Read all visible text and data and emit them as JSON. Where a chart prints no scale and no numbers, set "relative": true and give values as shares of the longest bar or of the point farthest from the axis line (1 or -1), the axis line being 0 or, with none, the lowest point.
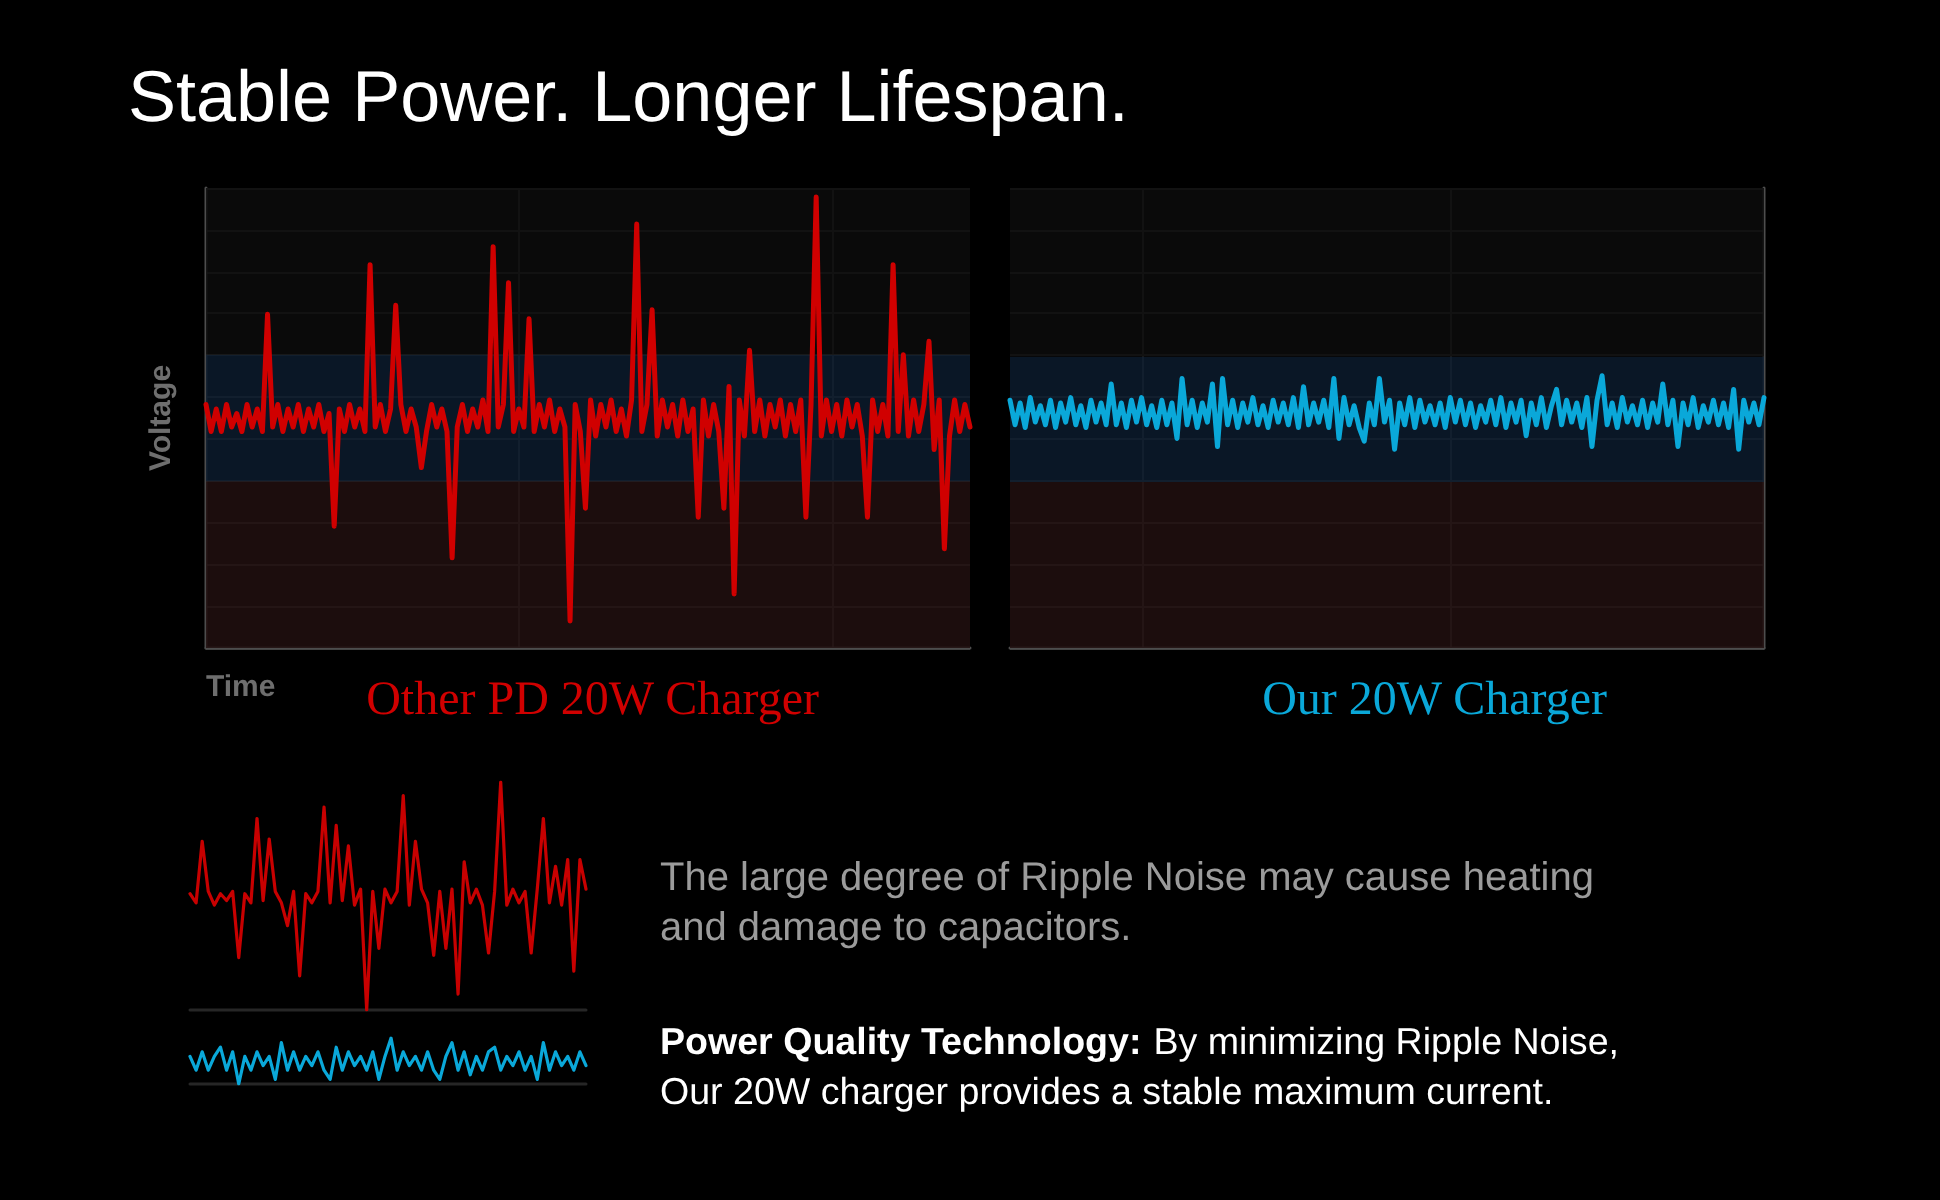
{
  "chart_data": [
    {
      "type": "line",
      "title": "Stable Power. Longer Lifespan.",
      "xlabel": "Time",
      "ylabel": "Voltage",
      "annotations": [
        "The large degree of Ripple Noise may cause heating and damage to capacitors.",
        "Power Quality Technology:",
        "By minimizing Ripple Noise,",
        "Our 20W charger provides a stable maximum current."
      ],
      "categories": [
        null,
        null,
        null,
        null,
        null,
        null,
        null,
        null,
        null,
        null,
        null,
        null,
        null,
        null,
        null,
        null,
        null,
        null,
        null,
        null,
        null,
        null,
        null,
        null,
        null,
        null,
        null,
        null,
        null,
        null,
        null,
        null,
        null,
        null,
        null,
        null,
        null,
        null,
        null,
        null,
        null,
        null,
        null,
        null,
        null,
        null,
        null,
        null,
        null,
        null,
        null,
        null,
        null,
        null,
        null,
        null,
        null,
        null,
        null,
        null,
        null,
        null,
        null,
        null,
        null,
        null,
        null,
        null,
        null,
        null,
        null,
        null,
        null,
        null,
        null,
        null,
        null,
        null,
        null,
        null,
        null,
        null,
        null,
        null,
        null,
        null,
        null,
        null,
        null,
        null,
        null,
        null,
        null,
        null,
        null,
        null,
        null,
        null,
        null,
        null,
        null,
        null,
        null,
        null,
        null,
        null,
        null,
        null,
        null,
        null,
        null,
        null,
        null,
        null,
        null,
        null,
        null,
        null,
        null,
        null,
        null,
        null,
        null,
        null,
        null,
        null,
        null,
        null,
        null,
        null,
        null,
        null,
        null,
        null,
        null,
        null,
        null,
        null,
        null,
        null,
        null,
        null,
        null,
        null,
        null,
        null,
        null,
        null,
        null,
        null
      ],
      "series": [
        {
          "name": "Other PD 20W Charger",
          "color": "#d00000",
          "values": [
            0.54,
            0.48,
            0.53,
            0.48,
            0.54,
            0.49,
            0.52,
            0.48,
            0.54,
            0.49,
            0.53,
            0.48,
            0.74,
            0.49,
            0.54,
            0.48,
            0.53,
            0.49,
            0.54,
            0.48,
            0.53,
            0.49,
            0.54,
            0.48,
            0.52,
            0.27,
            0.53,
            0.48,
            0.54,
            0.49,
            0.53,
            0.48,
            0.85,
            0.49,
            0.54,
            0.48,
            0.53,
            0.76,
            0.54,
            0.48,
            0.53,
            0.49,
            0.4,
            0.48,
            0.54,
            0.49,
            0.53,
            0.48,
            0.2,
            0.49,
            0.54,
            0.48,
            0.53,
            0.49,
            0.55,
            0.48,
            0.89,
            0.49,
            0.54,
            0.81,
            0.48,
            0.53,
            0.49,
            0.73,
            0.48,
            0.54,
            0.49,
            0.55,
            0.48,
            0.53,
            0.49,
            0.06,
            0.54,
            0.48,
            0.31,
            0.55,
            0.47,
            0.54,
            0.49,
            0.55,
            0.48,
            0.53,
            0.47,
            0.55,
            0.94,
            0.48,
            0.54,
            0.75,
            0.47,
            0.55,
            0.49,
            0.54,
            0.47,
            0.55,
            0.48,
            0.53,
            0.29,
            0.55,
            0.47,
            0.54,
            0.48,
            0.31,
            0.58,
            0.12,
            0.55,
            0.47,
            0.66,
            0.48,
            0.55,
            0.47,
            0.54,
            0.49,
            0.55,
            0.47,
            0.54,
            0.48,
            0.55,
            0.29,
            0.54,
            1,
            0.47,
            0.55,
            0.48,
            0.54,
            0.47,
            0.55,
            0.49,
            0.54,
            0.47,
            0.29,
            0.55,
            0.48,
            0.54,
            0.47,
            0.85,
            0.48,
            0.65,
            0.47,
            0.55,
            0.48,
            0.54,
            0.68,
            0.44,
            0.55,
            0.22,
            0.47,
            0.55,
            0.48,
            0.54,
            0.49
          ]
        }
      ],
      "relative": true,
      "bands": [
        {
          "axis": "y",
          "from": 0,
          "to": 0.37,
          "color": "#210f0f"
        },
        {
          "axis": "y",
          "from": 0.37,
          "to": 0.65,
          "color": "#0c1b2d"
        },
        {
          "axis": "y",
          "from": 0.65,
          "to": 1.02,
          "color": "#0c0c0c"
        }
      ],
      "grid": true,
      "legend": "bottom"
    },
    {
      "type": "line",
      "categories": [
        null,
        null,
        null,
        null,
        null,
        null,
        null,
        null,
        null,
        null,
        null,
        null,
        null,
        null,
        null,
        null,
        null,
        null,
        null,
        null,
        null,
        null,
        null,
        null,
        null,
        null,
        null,
        null,
        null,
        null,
        null,
        null,
        null,
        null,
        null,
        null,
        null,
        null,
        null,
        null,
        null,
        null,
        null,
        null,
        null,
        null,
        null,
        null,
        null,
        null,
        null,
        null,
        null,
        null,
        null,
        null,
        null,
        null,
        null,
        null,
        null,
        null,
        null,
        null,
        null,
        null,
        null,
        null,
        null,
        null,
        null,
        null,
        null,
        null,
        null,
        null,
        null,
        null,
        null,
        null,
        null,
        null,
        null,
        null,
        null,
        null,
        null,
        null,
        null,
        null,
        null,
        null,
        null,
        null,
        null,
        null,
        null,
        null,
        null,
        null,
        null,
        null,
        null,
        null,
        null,
        null,
        null,
        null,
        null,
        null,
        null,
        null,
        null,
        null,
        null,
        null,
        null,
        null,
        null,
        null,
        null,
        null,
        null,
        null,
        null,
        null,
        null,
        null,
        null,
        null,
        null,
        null,
        null,
        null,
        null,
        null,
        null,
        null,
        null,
        null,
        null,
        null,
        null,
        null,
        null,
        null,
        null,
        null,
        null,
        null
      ],
      "series": [
        {
          "name": "Our 20W Charger",
          "color": "#0aa8d9",
          "values": [
            0.91,
            0.82,
            0.9,
            0.81,
            0.92,
            0.83,
            0.89,
            0.82,
            0.91,
            0.81,
            0.9,
            0.83,
            0.92,
            0.82,
            0.89,
            0.81,
            0.91,
            0.83,
            0.9,
            0.82,
            0.97,
            0.82,
            0.9,
            0.81,
            0.91,
            0.83,
            0.92,
            0.82,
            0.89,
            0.81,
            0.91,
            0.82,
            0.9,
            0.77,
            0.99,
            0.82,
            0.91,
            0.81,
            0.9,
            0.83,
            0.97,
            0.74,
            0.99,
            0.82,
            0.91,
            0.81,
            0.9,
            0.83,
            0.92,
            0.82,
            0.89,
            0.81,
            0.91,
            0.83,
            0.9,
            0.82,
            0.92,
            0.81,
            0.96,
            0.82,
            0.9,
            0.83,
            0.91,
            0.81,
            0.99,
            0.77,
            0.92,
            0.82,
            0.89,
            0.81,
            0.76,
            0.9,
            0.82,
            0.99,
            0.83,
            0.91,
            0.73,
            0.9,
            0.82,
            0.92,
            0.81,
            0.91,
            0.83,
            0.89,
            0.82,
            0.9,
            0.81,
            0.92,
            0.83,
            0.91,
            0.82,
            0.9,
            0.81,
            0.89,
            0.83,
            0.91,
            0.82,
            0.92,
            0.81,
            0.9,
            0.83,
            0.91,
            0.78,
            0.9,
            0.82,
            0.92,
            0.81,
            0.89,
            0.95,
            0.82,
            0.91,
            0.83,
            0.9,
            0.81,
            0.92,
            0.74,
            0.91,
            1,
            0.82,
            0.9,
            0.81,
            0.92,
            0.83,
            0.89,
            0.82,
            0.91,
            0.81,
            0.9,
            0.83,
            0.97,
            0.82,
            0.91,
            0.74,
            0.9,
            0.82,
            0.92,
            0.81,
            0.89,
            0.83,
            0.91,
            0.82,
            0.9,
            0.81,
            0.95,
            0.73,
            0.91,
            0.83,
            0.9,
            0.82,
            0.92
          ]
        }
      ],
      "relative": true,
      "bands": [
        {
          "axis": "y",
          "from": 0,
          "to": 0.61,
          "color": "#210f0f"
        },
        {
          "axis": "y",
          "from": 0.61,
          "to": 1.07,
          "color": "#0c1b2d"
        },
        {
          "axis": "y",
          "from": 1.07,
          "to": 1.69,
          "color": "#0c0c0c"
        }
      ],
      "grid": true,
      "legend": "bottom"
    },
    {
      "type": "line",
      "categories": [
        null,
        null,
        null,
        null,
        null,
        null,
        null,
        null,
        null,
        null,
        null,
        null,
        null,
        null,
        null,
        null,
        null,
        null,
        null,
        null,
        null,
        null,
        null,
        null,
        null,
        null,
        null,
        null,
        null,
        null,
        null,
        null,
        null,
        null,
        null,
        null,
        null,
        null,
        null,
        null,
        null,
        null,
        null,
        null,
        null,
        null,
        null,
        null,
        null,
        null,
        null,
        null,
        null,
        null,
        null,
        null,
        null,
        null,
        null,
        null,
        null,
        null,
        null,
        null,
        null,
        null
      ],
      "series": [
        {
          "color": "#c80000",
          "values": [
            0.51,
            0.47,
            0.74,
            0.52,
            0.46,
            0.51,
            0.48,
            0.52,
            0.23,
            0.51,
            0.47,
            0.84,
            0.48,
            0.75,
            0.52,
            0.47,
            0.37,
            0.52,
            0.15,
            0.51,
            0.47,
            0.52,
            0.89,
            0.47,
            0.81,
            0.48,
            0.72,
            0.46,
            0.53,
            0,
            0.52,
            0.27,
            0.53,
            0.47,
            0.52,
            0.94,
            0.46,
            0.74,
            0.53,
            0.47,
            0.24,
            0.52,
            0.27,
            0.53,
            0.07,
            0.65,
            0.47,
            0.53,
            0.46,
            0.25,
            0.52,
            1,
            0.46,
            0.53,
            0.47,
            0.52,
            0.25,
            0.53,
            0.84,
            0.47,
            0.63,
            0.46,
            0.66,
            0.17,
            0.66,
            0.53
          ]
        }
      ],
      "relative": true
    },
    {
      "type": "line",
      "categories": [
        null,
        null,
        null,
        null,
        null,
        null,
        null,
        null,
        null,
        null,
        null,
        null,
        null,
        null,
        null,
        null,
        null,
        null,
        null,
        null,
        null,
        null,
        null,
        null,
        null,
        null,
        null,
        null,
        null,
        null,
        null,
        null,
        null,
        null,
        null,
        null,
        null,
        null,
        null,
        null,
        null,
        null,
        null,
        null,
        null,
        null,
        null,
        null,
        null,
        null,
        null,
        null,
        null,
        null,
        null,
        null,
        null,
        null,
        null,
        null,
        null,
        null,
        null,
        null,
        null,
        null
      ],
      "series": [
        {
          "color": "#0aa8d9",
          "values": [
            0.6,
            0.3,
            0.7,
            0.3,
            0.6,
            0.8,
            0.3,
            0.7,
            0,
            0.6,
            0.3,
            0.7,
            0.4,
            0.6,
            0.1,
            0.9,
            0.3,
            0.7,
            0.3,
            0.6,
            0.4,
            0.7,
            0.3,
            0.1,
            0.8,
            0.3,
            0.7,
            0.4,
            0.6,
            0.3,
            0.7,
            0.1,
            0.6,
            1,
            0.3,
            0.7,
            0.4,
            0.6,
            0.3,
            0.7,
            0.3,
            0.1,
            0.6,
            0.9,
            0.3,
            0.7,
            0.2,
            0.6,
            0.3,
            0.7,
            0.8,
            0.3,
            0.6,
            0.4,
            0.7,
            0.3,
            0.6,
            0.1,
            0.9,
            0.3,
            0.7,
            0.4,
            0.6,
            0.3,
            0.7,
            0.4
          ]
        }
      ],
      "relative": true
    }
  ]
}
